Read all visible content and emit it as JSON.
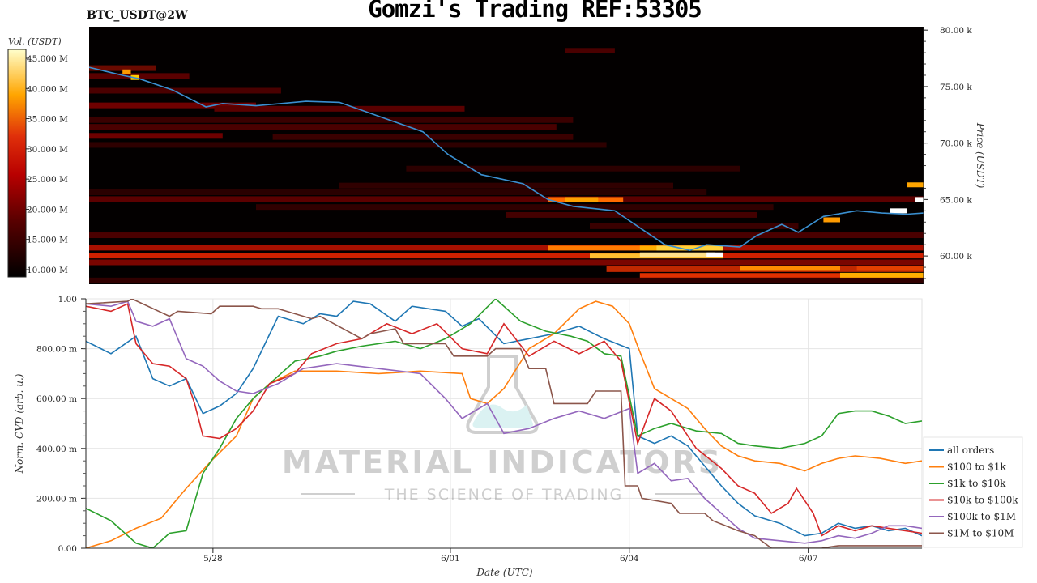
{
  "header": {
    "title": "Gomzi's Trading REF:53305",
    "pair": "BTC_USDT@2W"
  },
  "colors": {
    "price_line": "#3a8fd0",
    "all_orders": "#1f77b4",
    "usd100_1k": "#ff7f0e",
    "usd1k_10k": "#2ca02c",
    "usd10k_100k": "#d62728",
    "usd100k_1m": "#9467bd",
    "usd1m_10m": "#8c564b"
  },
  "watermark": {
    "line1": "MATERIAL INDICATORS",
    "line2": "THE SCIENCE OF TRADING"
  },
  "chart_data": [
    {
      "type": "heatmap",
      "title": "BTC_USDT@2W",
      "colorbar_label": "Vol. (USDT)",
      "colorbar_ticks": [
        "10.000 M",
        "15.000 M",
        "20.000 M",
        "25.000 M",
        "30.000 M",
        "35.000 M",
        "40.000 M",
        "45.000 M"
      ],
      "ylabel": "Price (USDT)",
      "y_ticks": [
        "60.00 k",
        "65.00 k",
        "70.00 k",
        "75.00 k",
        "80.00 k"
      ],
      "y_tick_values": [
        60000,
        65000,
        70000,
        75000,
        80000
      ],
      "ylim": [
        57500,
        80300
      ],
      "price_series": {
        "t": [
          0,
          0.04,
          0.06,
          0.1,
          0.14,
          0.16,
          0.2,
          0.26,
          0.3,
          0.35,
          0.4,
          0.43,
          0.47,
          0.52,
          0.55,
          0.58,
          0.63,
          0.66,
          0.69,
          0.72,
          0.74,
          0.78,
          0.8,
          0.83,
          0.85,
          0.88,
          0.92,
          0.95,
          0.98,
          1.0
        ],
        "price": [
          76700,
          76000,
          75700,
          74700,
          73200,
          73500,
          73300,
          73700,
          73600,
          72300,
          71000,
          69000,
          67200,
          66400,
          65000,
          64400,
          64000,
          62500,
          61000,
          60500,
          61000,
          60800,
          61800,
          62800,
          62100,
          63500,
          64000,
          63800,
          63700,
          63800
        ]
      }
    },
    {
      "type": "line",
      "xlabel": "Date (UTC)",
      "ylabel": "Norm. CVD (arb. u.)",
      "ylim": [
        0,
        1
      ],
      "y_ticks": [
        "0.00",
        "200.00 m",
        "400.00 m",
        "600.00 m",
        "800.00 m",
        "1.00"
      ],
      "y_tick_values": [
        0,
        0.2,
        0.4,
        0.6,
        0.8,
        1.0
      ],
      "x_ticks": [
        "5/28",
        "6/01",
        "6/04",
        "6/07"
      ],
      "x_tick_values": [
        0.152,
        0.436,
        0.65,
        0.864
      ],
      "legend_position": "lower-right",
      "series": [
        {
          "name": "all orders",
          "t": [
            0,
            0.03,
            0.06,
            0.08,
            0.1,
            0.12,
            0.14,
            0.16,
            0.18,
            0.2,
            0.23,
            0.26,
            0.28,
            0.3,
            0.32,
            0.34,
            0.37,
            0.39,
            0.41,
            0.43,
            0.45,
            0.47,
            0.5,
            0.53,
            0.56,
            0.59,
            0.62,
            0.65,
            0.66,
            0.68,
            0.7,
            0.72,
            0.74,
            0.76,
            0.78,
            0.8,
            0.83,
            0.86,
            0.88,
            0.9,
            0.92,
            0.94,
            0.96,
            0.98,
            1.0
          ],
          "values": [
            0.83,
            0.78,
            0.85,
            0.68,
            0.65,
            0.68,
            0.54,
            0.57,
            0.62,
            0.72,
            0.93,
            0.9,
            0.94,
            0.93,
            0.99,
            0.98,
            0.91,
            0.97,
            0.96,
            0.95,
            0.89,
            0.92,
            0.82,
            0.84,
            0.86,
            0.89,
            0.84,
            0.8,
            0.45,
            0.42,
            0.45,
            0.41,
            0.33,
            0.25,
            0.18,
            0.13,
            0.1,
            0.05,
            0.06,
            0.1,
            0.08,
            0.09,
            0.07,
            0.08,
            0.05
          ]
        },
        {
          "name": "$100 to $1k",
          "t": [
            0,
            0.03,
            0.06,
            0.09,
            0.12,
            0.15,
            0.18,
            0.2,
            0.22,
            0.25,
            0.3,
            0.35,
            0.4,
            0.45,
            0.46,
            0.48,
            0.5,
            0.53,
            0.56,
            0.59,
            0.61,
            0.63,
            0.65,
            0.66,
            0.68,
            0.7,
            0.72,
            0.74,
            0.76,
            0.78,
            0.8,
            0.83,
            0.86,
            0.88,
            0.9,
            0.92,
            0.95,
            0.98,
            1.0
          ],
          "values": [
            0.0,
            0.03,
            0.08,
            0.12,
            0.24,
            0.35,
            0.45,
            0.6,
            0.66,
            0.71,
            0.71,
            0.7,
            0.71,
            0.7,
            0.6,
            0.58,
            0.64,
            0.8,
            0.86,
            0.96,
            0.99,
            0.97,
            0.9,
            0.81,
            0.64,
            0.6,
            0.56,
            0.48,
            0.41,
            0.37,
            0.35,
            0.34,
            0.31,
            0.34,
            0.36,
            0.37,
            0.36,
            0.34,
            0.35
          ]
        },
        {
          "name": "$1k to $10k",
          "t": [
            0,
            0.03,
            0.06,
            0.08,
            0.1,
            0.12,
            0.14,
            0.16,
            0.18,
            0.2,
            0.22,
            0.25,
            0.28,
            0.3,
            0.33,
            0.37,
            0.4,
            0.43,
            0.46,
            0.49,
            0.5,
            0.52,
            0.55,
            0.58,
            0.6,
            0.62,
            0.64,
            0.66,
            0.68,
            0.7,
            0.73,
            0.76,
            0.78,
            0.8,
            0.83,
            0.86,
            0.88,
            0.9,
            0.92,
            0.94,
            0.96,
            0.98,
            1.0
          ],
          "values": [
            0.16,
            0.11,
            0.02,
            0.0,
            0.06,
            0.07,
            0.3,
            0.4,
            0.52,
            0.6,
            0.66,
            0.75,
            0.77,
            0.79,
            0.81,
            0.83,
            0.8,
            0.84,
            0.9,
            1.0,
            0.97,
            0.91,
            0.87,
            0.85,
            0.83,
            0.78,
            0.77,
            0.45,
            0.48,
            0.5,
            0.47,
            0.46,
            0.42,
            0.41,
            0.4,
            0.42,
            0.45,
            0.54,
            0.55,
            0.55,
            0.53,
            0.5,
            0.51
          ]
        },
        {
          "name": "$10k to $100k",
          "t": [
            0,
            0.03,
            0.05,
            0.06,
            0.08,
            0.1,
            0.12,
            0.13,
            0.14,
            0.16,
            0.18,
            0.2,
            0.22,
            0.25,
            0.27,
            0.3,
            0.33,
            0.36,
            0.39,
            0.42,
            0.45,
            0.48,
            0.5,
            0.53,
            0.56,
            0.59,
            0.62,
            0.64,
            0.66,
            0.68,
            0.7,
            0.73,
            0.76,
            0.78,
            0.8,
            0.82,
            0.84,
            0.85,
            0.87,
            0.88,
            0.9,
            0.92,
            0.94,
            0.96,
            0.98,
            1.0
          ],
          "values": [
            0.97,
            0.95,
            0.98,
            0.82,
            0.74,
            0.73,
            0.68,
            0.58,
            0.45,
            0.44,
            0.48,
            0.55,
            0.66,
            0.7,
            0.78,
            0.82,
            0.84,
            0.9,
            0.86,
            0.9,
            0.8,
            0.78,
            0.9,
            0.77,
            0.83,
            0.78,
            0.83,
            0.75,
            0.42,
            0.6,
            0.55,
            0.4,
            0.32,
            0.25,
            0.22,
            0.14,
            0.18,
            0.24,
            0.14,
            0.05,
            0.09,
            0.07,
            0.09,
            0.08,
            0.07,
            0.06
          ]
        },
        {
          "name": "$100k to $1M",
          "t": [
            0,
            0.03,
            0.05,
            0.06,
            0.08,
            0.1,
            0.12,
            0.14,
            0.16,
            0.18,
            0.2,
            0.23,
            0.26,
            0.3,
            0.35,
            0.4,
            0.43,
            0.45,
            0.48,
            0.5,
            0.53,
            0.56,
            0.59,
            0.62,
            0.65,
            0.66,
            0.68,
            0.7,
            0.72,
            0.74,
            0.76,
            0.78,
            0.8,
            0.83,
            0.86,
            0.88,
            0.9,
            0.92,
            0.94,
            0.96,
            0.98,
            1.0
          ],
          "values": [
            0.98,
            0.97,
            0.99,
            0.91,
            0.89,
            0.92,
            0.76,
            0.73,
            0.67,
            0.63,
            0.62,
            0.66,
            0.72,
            0.74,
            0.72,
            0.7,
            0.6,
            0.52,
            0.58,
            0.46,
            0.48,
            0.52,
            0.55,
            0.52,
            0.56,
            0.3,
            0.34,
            0.27,
            0.28,
            0.2,
            0.14,
            0.08,
            0.04,
            0.03,
            0.02,
            0.03,
            0.05,
            0.04,
            0.06,
            0.09,
            0.09,
            0.08
          ]
        },
        {
          "name": "$1M to $10M",
          "t": [
            0,
            0.05,
            0.055,
            0.1,
            0.11,
            0.15,
            0.16,
            0.2,
            0.21,
            0.23,
            0.24,
            0.27,
            0.28,
            0.33,
            0.34,
            0.37,
            0.38,
            0.43,
            0.44,
            0.48,
            0.49,
            0.52,
            0.53,
            0.55,
            0.56,
            0.6,
            0.61,
            0.64,
            0.645,
            0.66,
            0.665,
            0.7,
            0.71,
            0.74,
            0.75,
            0.78,
            0.8,
            0.82,
            0.86,
            0.88,
            0.9,
            0.93,
            0.96,
            1.0
          ],
          "values": [
            0.98,
            0.99,
            1.0,
            0.93,
            0.95,
            0.94,
            0.97,
            0.97,
            0.96,
            0.96,
            0.95,
            0.92,
            0.93,
            0.84,
            0.86,
            0.88,
            0.82,
            0.82,
            0.77,
            0.77,
            0.8,
            0.8,
            0.72,
            0.72,
            0.58,
            0.58,
            0.63,
            0.63,
            0.25,
            0.25,
            0.2,
            0.18,
            0.14,
            0.14,
            0.11,
            0.07,
            0.05,
            0.0,
            0.0,
            0.0,
            0.01,
            0.01,
            0.01,
            0.01
          ]
        }
      ]
    }
  ]
}
